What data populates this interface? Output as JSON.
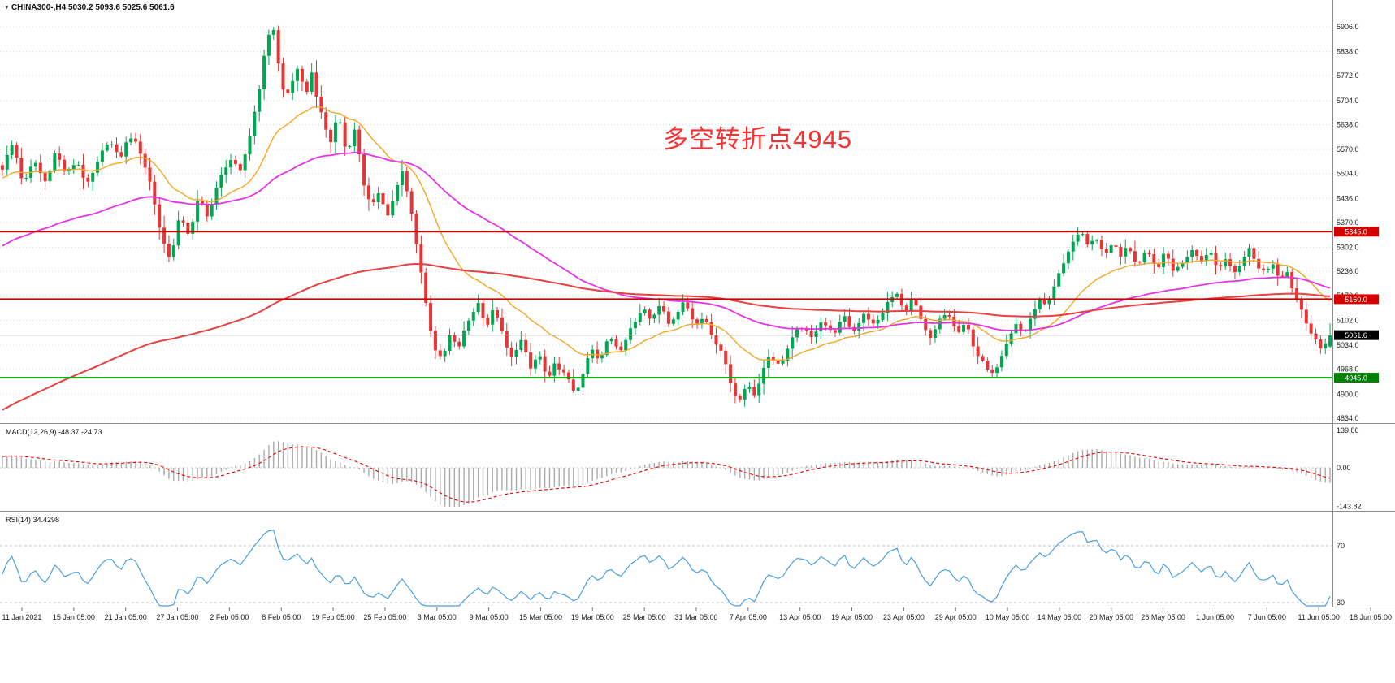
{
  "header": {
    "icon": "▼",
    "title": "CHINA300-,H4 5030.2 5093.6 5025.6 5061.6"
  },
  "annotation": {
    "text": "多空转折点4945",
    "color": "#FB3030"
  },
  "price_axis": {
    "labels": [
      "5906.0",
      "5838.0",
      "5772.0",
      "5704.0",
      "5638.0",
      "5570.0",
      "5504.0",
      "5436.0",
      "5370.0",
      "5302.0",
      "5236.0",
      "5170.0",
      "5102.0",
      "5034.0",
      "4968.0",
      "4900.0",
      "4834.0"
    ]
  },
  "levels": [
    {
      "value": 5345.0,
      "label": "5345.0",
      "line_color": "#D40000",
      "box_color": "#D40000",
      "width": 2
    },
    {
      "value": 5160.0,
      "label": "5160.0",
      "line_color": "#D40000",
      "box_color": "#D40000",
      "width": 2
    },
    {
      "value": 5061.6,
      "label": "5061.6",
      "line_color": "#444444",
      "box_color": "#000000",
      "width": 1
    },
    {
      "value": 4945.0,
      "label": "4945.0",
      "line_color": "#00A000",
      "box_color": "#008000",
      "width": 2
    }
  ],
  "panels": {
    "macd": {
      "label": "MACD(12,26,9) -48.37 -24.73",
      "axis_labels": [
        "139.86",
        "0.00",
        "-143.82"
      ]
    },
    "rsi": {
      "label": "RSI(14) 34.4298",
      "axis_labels": [
        "70",
        "30"
      ]
    }
  },
  "time_axis": {
    "dates": [
      "11 Jan 2021",
      "15 Jan 05:00",
      "21 Jan 05:00",
      "27 Jan 05:00",
      "2 Feb 05:00",
      "8 Feb 05:00",
      "19 Feb 05:00",
      "25 Feb 05:00",
      "3 Mar 05:00",
      "9 Mar 05:00",
      "15 Mar 05:00",
      "19 Mar 05:00",
      "25 Mar 05:00",
      "31 Mar 05:00",
      "7 Apr 05:00",
      "13 Apr 05:00",
      "19 Apr 05:00",
      "23 Apr 05:00",
      "29 Apr 05:00",
      "10 May 05:00",
      "14 May 05:00",
      "20 May 05:00",
      "26 May 05:00",
      "1 Jun 05:00",
      "7 Jun 05:00",
      "11 Jun 05:00",
      "18 Jun 05:00"
    ]
  },
  "colors": {
    "candle_up": "#00A651",
    "candle_down": "#E53535",
    "macd_hist": "#ABABAB",
    "macd_signal": "#E00000",
    "rsi_line": "#4A9EDE",
    "grid": "#DCDCDC",
    "axis_text": "#1A1A1A",
    "separator": "#8C8C8C"
  },
  "chart_data": {
    "type": "candlestick",
    "symbol": "CHINA300-",
    "timeframe": "H4",
    "last_ohlc": {
      "open": 5030.2,
      "high": 5093.6,
      "low": 5025.6,
      "close": 5061.6
    },
    "price_axis_range": [
      4834.0,
      5906.0
    ],
    "x_range_dates": [
      "11 Jan 2021",
      "18 Jun 2021"
    ],
    "num_candles": 280,
    "close_anchors": [
      [
        0.0,
        5520
      ],
      [
        0.008,
        5585
      ],
      [
        0.016,
        5470
      ],
      [
        0.024,
        5545
      ],
      [
        0.032,
        5480
      ],
      [
        0.04,
        5560
      ],
      [
        0.048,
        5500
      ],
      [
        0.056,
        5545
      ],
      [
        0.064,
        5470
      ],
      [
        0.072,
        5530
      ],
      [
        0.08,
        5600
      ],
      [
        0.088,
        5545
      ],
      [
        0.096,
        5610
      ],
      [
        0.104,
        5560
      ],
      [
        0.112,
        5470
      ],
      [
        0.12,
        5330
      ],
      [
        0.127,
        5270
      ],
      [
        0.134,
        5390
      ],
      [
        0.141,
        5330
      ],
      [
        0.148,
        5440
      ],
      [
        0.155,
        5390
      ],
      [
        0.163,
        5480
      ],
      [
        0.171,
        5545
      ],
      [
        0.179,
        5505
      ],
      [
        0.187,
        5620
      ],
      [
        0.194,
        5750
      ],
      [
        0.2,
        5880
      ],
      [
        0.204,
        5905
      ],
      [
        0.208,
        5800
      ],
      [
        0.213,
        5705
      ],
      [
        0.218,
        5760
      ],
      [
        0.223,
        5790
      ],
      [
        0.228,
        5715
      ],
      [
        0.233,
        5775
      ],
      [
        0.24,
        5665
      ],
      [
        0.247,
        5590
      ],
      [
        0.253,
        5675
      ],
      [
        0.259,
        5560
      ],
      [
        0.266,
        5625
      ],
      [
        0.272,
        5480
      ],
      [
        0.278,
        5405
      ],
      [
        0.284,
        5465
      ],
      [
        0.29,
        5385
      ],
      [
        0.296,
        5450
      ],
      [
        0.301,
        5505
      ],
      [
        0.307,
        5420
      ],
      [
        0.313,
        5295
      ],
      [
        0.319,
        5150
      ],
      [
        0.325,
        5030
      ],
      [
        0.331,
        4985
      ],
      [
        0.337,
        5060
      ],
      [
        0.343,
        5025
      ],
      [
        0.35,
        5095
      ],
      [
        0.358,
        5150
      ],
      [
        0.365,
        5085
      ],
      [
        0.371,
        5140
      ],
      [
        0.377,
        5060
      ],
      [
        0.383,
        4995
      ],
      [
        0.39,
        5050
      ],
      [
        0.398,
        4965
      ],
      [
        0.404,
        5015
      ],
      [
        0.411,
        4935
      ],
      [
        0.417,
        4990
      ],
      [
        0.424,
        4945
      ],
      [
        0.431,
        4905
      ],
      [
        0.437,
        4945
      ],
      [
        0.443,
        5030
      ],
      [
        0.45,
        4985
      ],
      [
        0.457,
        5060
      ],
      [
        0.465,
        5020
      ],
      [
        0.475,
        5090
      ],
      [
        0.483,
        5145
      ],
      [
        0.489,
        5100
      ],
      [
        0.496,
        5148
      ],
      [
        0.502,
        5095
      ],
      [
        0.509,
        5135
      ],
      [
        0.515,
        5152
      ],
      [
        0.522,
        5085
      ],
      [
        0.529,
        5112
      ],
      [
        0.537,
        5045
      ],
      [
        0.544,
        4995
      ],
      [
        0.55,
        4910
      ],
      [
        0.556,
        4872
      ],
      [
        0.561,
        4940
      ],
      [
        0.566,
        4895
      ],
      [
        0.572,
        4962
      ],
      [
        0.578,
        5012
      ],
      [
        0.585,
        4972
      ],
      [
        0.594,
        5042
      ],
      [
        0.601,
        5092
      ],
      [
        0.609,
        5052
      ],
      [
        0.617,
        5102
      ],
      [
        0.625,
        5062
      ],
      [
        0.634,
        5112
      ],
      [
        0.641,
        5072
      ],
      [
        0.649,
        5122
      ],
      [
        0.657,
        5082
      ],
      [
        0.665,
        5142
      ],
      [
        0.673,
        5182
      ],
      [
        0.679,
        5122
      ],
      [
        0.686,
        5162
      ],
      [
        0.693,
        5085
      ],
      [
        0.699,
        5052
      ],
      [
        0.706,
        5102
      ],
      [
        0.712,
        5122
      ],
      [
        0.719,
        5062
      ],
      [
        0.726,
        5092
      ],
      [
        0.733,
        5022
      ],
      [
        0.739,
        4982
      ],
      [
        0.745,
        4945
      ],
      [
        0.751,
        4992
      ],
      [
        0.757,
        5052
      ],
      [
        0.763,
        5102
      ],
      [
        0.769,
        5062
      ],
      [
        0.776,
        5122
      ],
      [
        0.782,
        5152
      ],
      [
        0.788,
        5150
      ],
      [
        0.794,
        5212
      ],
      [
        0.8,
        5262
      ],
      [
        0.806,
        5312
      ],
      [
        0.812,
        5348
      ],
      [
        0.818,
        5302
      ],
      [
        0.824,
        5332
      ],
      [
        0.83,
        5282
      ],
      [
        0.836,
        5318
      ],
      [
        0.842,
        5272
      ],
      [
        0.848,
        5305
      ],
      [
        0.855,
        5252
      ],
      [
        0.862,
        5292
      ],
      [
        0.869,
        5242
      ],
      [
        0.876,
        5282
      ],
      [
        0.883,
        5232
      ],
      [
        0.89,
        5272
      ],
      [
        0.897,
        5305
      ],
      [
        0.903,
        5262
      ],
      [
        0.909,
        5295
      ],
      [
        0.915,
        5245
      ],
      [
        0.921,
        5275
      ],
      [
        0.927,
        5228
      ],
      [
        0.933,
        5262
      ],
      [
        0.939,
        5295
      ],
      [
        0.945,
        5252
      ],
      [
        0.951,
        5232
      ],
      [
        0.957,
        5262
      ],
      [
        0.962,
        5212
      ],
      [
        0.967,
        5242
      ],
      [
        0.972,
        5185
      ],
      [
        0.977,
        5148
      ],
      [
        0.982,
        5098
      ],
      [
        0.987,
        5058
      ],
      [
        0.993,
        5032
      ],
      [
        1.0,
        5062
      ]
    ],
    "moving_averages": [
      {
        "name": "ma-fast",
        "period": 22,
        "seed": 5490,
        "color": "#F5A623",
        "width": 1.4
      },
      {
        "name": "ma-mid",
        "period": 72,
        "seed": 5300,
        "color": "#E632E6",
        "width": 1.8
      },
      {
        "name": "ma-slow",
        "period": 200,
        "seed": 4850,
        "color": "#E84040",
        "width": 2
      }
    ],
    "horizontal_levels": [
      5345.0,
      5160.0,
      5061.6,
      4945.0
    ],
    "indicators": {
      "macd": {
        "params": [
          12,
          26,
          9
        ],
        "value": -48.37,
        "signal": -24.73,
        "axis_max": 139.86,
        "axis_min": -143.82
      },
      "rsi": {
        "period": 14,
        "value": 34.4298,
        "overbought": 70,
        "oversold": 30
      }
    }
  }
}
